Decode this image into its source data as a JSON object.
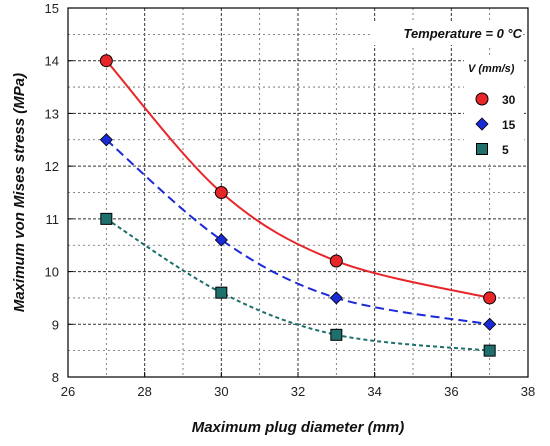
{
  "chart_data": {
    "type": "scatter",
    "xlabel": "Maximum plug diameter (mm)",
    "ylabel": "Maximum von Mises stress (MPa)",
    "annotation": "Temperature = 0 °C",
    "legend_title": "V (mm/s)",
    "legend_position": "top-right",
    "xlim": [
      26,
      38
    ],
    "ylim": [
      8,
      15
    ],
    "xticks": [
      "26",
      "28",
      "30",
      "32",
      "34",
      "36",
      "38"
    ],
    "yticks": [
      "8",
      "9",
      "10",
      "11",
      "12",
      "13",
      "14",
      "15"
    ],
    "grid": true,
    "series": [
      {
        "name": "30",
        "marker": "circle",
        "color": "#e8262a",
        "line_style": "solid",
        "x": [
          27,
          30,
          33,
          37
        ],
        "y": [
          14.0,
          11.5,
          10.2,
          9.5
        ]
      },
      {
        "name": "15",
        "marker": "diamond",
        "color": "#1a2ad8",
        "line_style": "dashed",
        "x": [
          27,
          30,
          33,
          37
        ],
        "y": [
          12.5,
          10.6,
          9.5,
          9.0
        ]
      },
      {
        "name": "5",
        "marker": "square",
        "color": "#1f6f6c",
        "line_style": "dotted",
        "x": [
          27,
          30,
          33,
          37
        ],
        "y": [
          11.0,
          9.6,
          8.8,
          8.5
        ]
      }
    ]
  }
}
